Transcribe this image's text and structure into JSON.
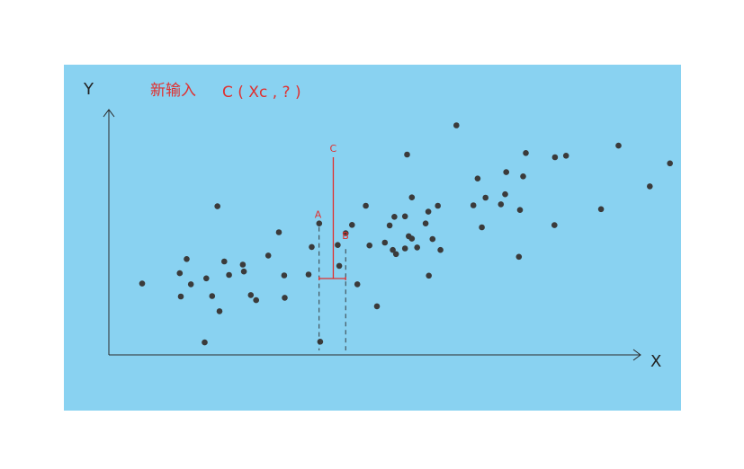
{
  "colors": {
    "background": "#89d2f1",
    "axis": "#2b2b2b",
    "point": "#3b3b3b",
    "accent": "#e0302f"
  },
  "annotation": {
    "title": "新输入",
    "point_expr": "C ( Xc , ? )"
  },
  "axes": {
    "x_label": "X",
    "y_label": "Y"
  },
  "markers": {
    "a": "A",
    "b": "B",
    "c": "C"
  },
  "chart_data": {
    "type": "scatter",
    "xlim": [
      0,
      100
    ],
    "ylim": [
      0,
      100
    ],
    "grid": false,
    "points": [
      [
        3.4,
        29.1
      ],
      [
        10.5,
        33.3
      ],
      [
        11.8,
        39.1
      ],
      [
        12.6,
        28.8
      ],
      [
        10.7,
        23.8
      ],
      [
        15.2,
        5.1
      ],
      [
        15.5,
        31.2
      ],
      [
        16.6,
        24.0
      ],
      [
        17.6,
        60.6
      ],
      [
        18.0,
        17.8
      ],
      [
        18.9,
        38.1
      ],
      [
        19.8,
        32.6
      ],
      [
        22.4,
        36.8
      ],
      [
        22.6,
        34.0
      ],
      [
        23.9,
        24.4
      ],
      [
        24.9,
        22.3
      ],
      [
        27.2,
        40.5
      ],
      [
        29.2,
        50.0
      ],
      [
        30.2,
        32.4
      ],
      [
        30.3,
        23.3
      ],
      [
        34.8,
        32.8
      ],
      [
        35.4,
        44.0
      ],
      [
        36.8,
        53.6
      ],
      [
        40.3,
        44.8
      ],
      [
        37.0,
        5.4
      ],
      [
        41.8,
        49.6
      ],
      [
        40.6,
        36.3
      ],
      [
        43.0,
        53.0
      ],
      [
        44.0,
        28.8
      ],
      [
        45.6,
        60.8
      ],
      [
        46.3,
        44.6
      ],
      [
        47.7,
        19.8
      ],
      [
        49.2,
        45.8
      ],
      [
        50.1,
        52.8
      ],
      [
        50.7,
        42.8
      ],
      [
        51.0,
        56.3
      ],
      [
        51.3,
        41.1
      ],
      [
        53.0,
        43.4
      ],
      [
        53.0,
        56.5
      ],
      [
        53.4,
        81.7
      ],
      [
        53.7,
        48.4
      ],
      [
        54.3,
        64.2
      ],
      [
        54.3,
        47.4
      ],
      [
        55.3,
        43.8
      ],
      [
        56.9,
        53.6
      ],
      [
        57.4,
        58.4
      ],
      [
        57.5,
        32.3
      ],
      [
        58.2,
        47.2
      ],
      [
        59.2,
        60.8
      ],
      [
        59.7,
        42.8
      ],
      [
        62.7,
        93.6
      ],
      [
        65.9,
        61.0
      ],
      [
        66.7,
        71.9
      ],
      [
        67.5,
        52.0
      ],
      [
        68.2,
        64.1
      ],
      [
        71.1,
        61.4
      ],
      [
        71.9,
        65.5
      ],
      [
        72.1,
        74.5
      ],
      [
        74.5,
        40.0
      ],
      [
        74.7,
        59.1
      ],
      [
        75.3,
        72.8
      ],
      [
        75.8,
        82.3
      ],
      [
        81.2,
        52.9
      ],
      [
        81.3,
        80.6
      ],
      [
        83.4,
        81.2
      ],
      [
        90.0,
        59.4
      ],
      [
        93.3,
        85.3
      ],
      [
        99.2,
        68.7
      ],
      [
        103.0,
        78.1
      ]
    ],
    "highlight": {
      "A": [
        36.8,
        53.6
      ],
      "B": [
        41.8,
        44.6
      ],
      "C_x_range": [
        36.8,
        41.8
      ]
    }
  }
}
